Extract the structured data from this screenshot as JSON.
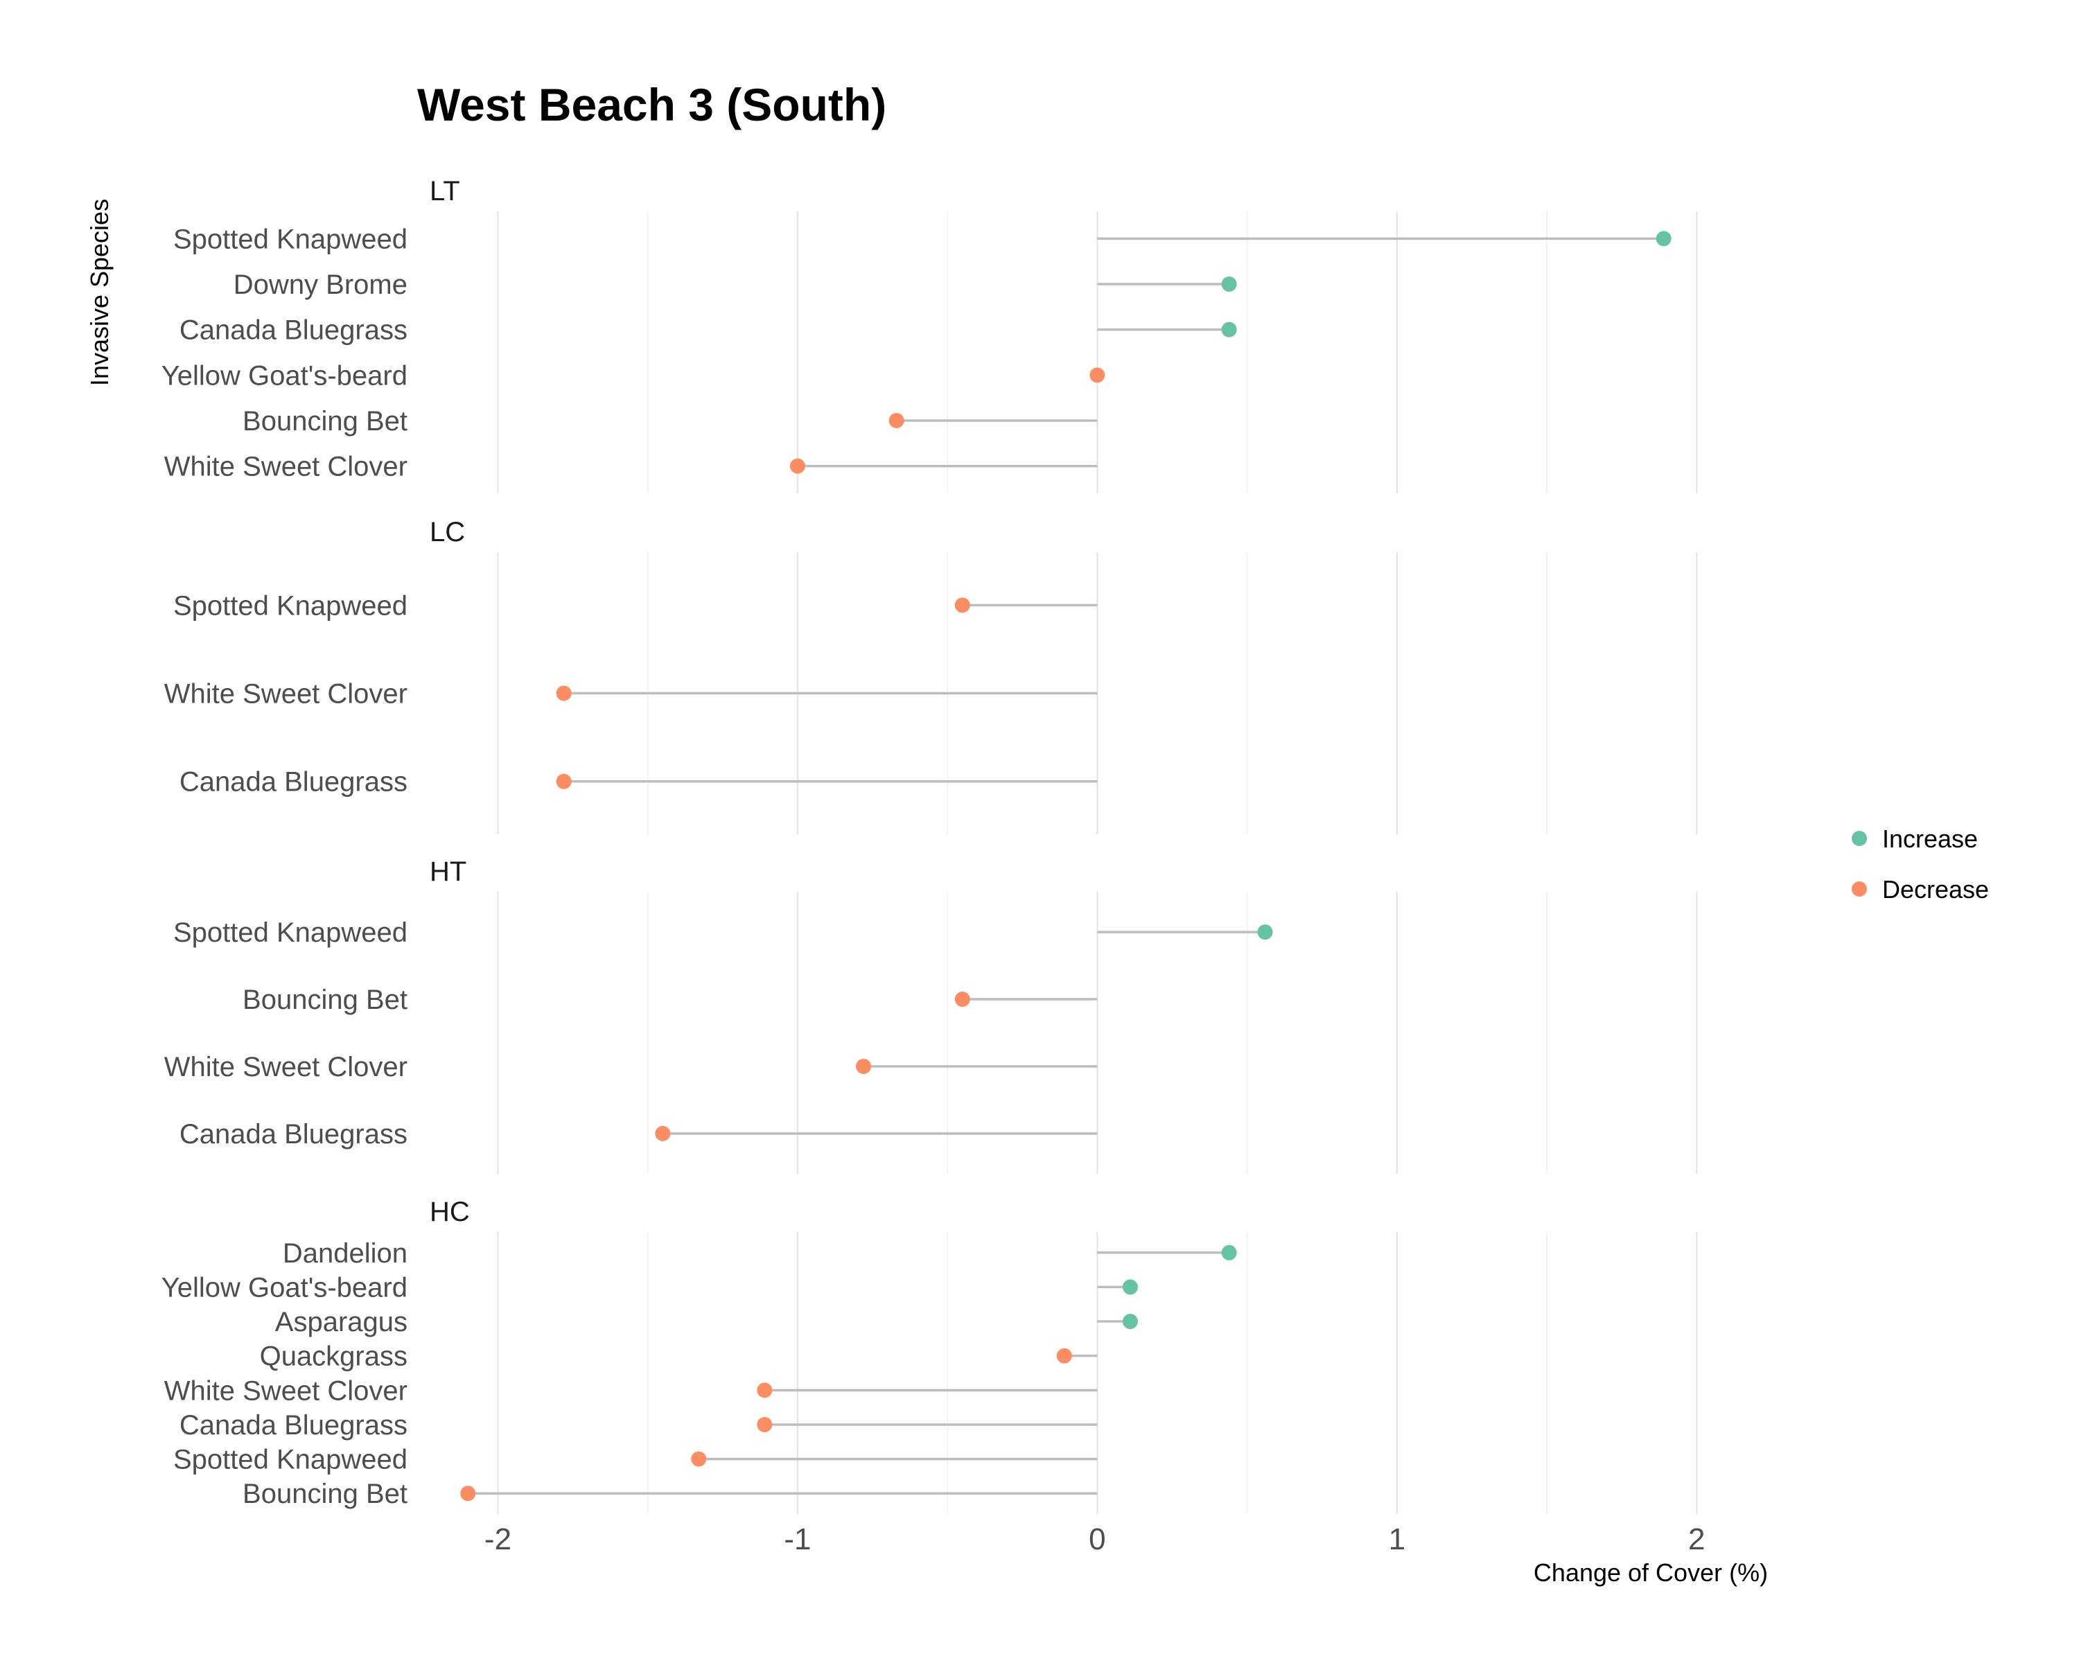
{
  "chart_data": {
    "type": "lollipop",
    "title": "West Beach 3 (South)",
    "xlabel": "Change of Cover (%)",
    "ylabel": "Invasive Species",
    "xlim": [
      -2.2,
      2.3
    ],
    "x_ticks": [
      -2,
      -1,
      0,
      1,
      2
    ],
    "x_tick_labels": [
      "-2",
      "-1",
      "0",
      "1",
      "2"
    ],
    "grid": true,
    "legend": {
      "placement": "right",
      "items": [
        {
          "label": "Increase",
          "color": "#66c2a5"
        },
        {
          "label": "Decrease",
          "color": "#fc8d62"
        }
      ]
    },
    "facets": [
      {
        "name": "LT",
        "points": [
          {
            "species": "Spotted Knapweed",
            "value": 1.89,
            "direction": "Increase"
          },
          {
            "species": "Downy Brome",
            "value": 0.44,
            "direction": "Increase"
          },
          {
            "species": "Canada Bluegrass",
            "value": 0.44,
            "direction": "Increase"
          },
          {
            "species": "Yellow Goat's-beard",
            "value": 0.0,
            "direction": "Decrease"
          },
          {
            "species": "Bouncing Bet",
            "value": -0.67,
            "direction": "Decrease"
          },
          {
            "species": "White Sweet Clover",
            "value": -1.0,
            "direction": "Decrease"
          }
        ]
      },
      {
        "name": "LC",
        "points": [
          {
            "species": "Spotted Knapweed",
            "value": -0.45,
            "direction": "Decrease"
          },
          {
            "species": "White Sweet Clover",
            "value": -1.78,
            "direction": "Decrease"
          },
          {
            "species": "Canada Bluegrass",
            "value": -1.78,
            "direction": "Decrease"
          }
        ]
      },
      {
        "name": "HT",
        "points": [
          {
            "species": "Spotted Knapweed",
            "value": 0.56,
            "direction": "Increase"
          },
          {
            "species": "Bouncing Bet",
            "value": -0.45,
            "direction": "Decrease"
          },
          {
            "species": "White Sweet Clover",
            "value": -0.78,
            "direction": "Decrease"
          },
          {
            "species": "Canada Bluegrass",
            "value": -1.45,
            "direction": "Decrease"
          }
        ]
      },
      {
        "name": "HC",
        "points": [
          {
            "species": "Dandelion",
            "value": 0.44,
            "direction": "Increase"
          },
          {
            "species": "Yellow Goat's-beard",
            "value": 0.11,
            "direction": "Increase"
          },
          {
            "species": "Asparagus",
            "value": 0.11,
            "direction": "Increase"
          },
          {
            "species": "Quackgrass",
            "value": -0.11,
            "direction": "Decrease"
          },
          {
            "species": "White Sweet Clover",
            "value": -1.11,
            "direction": "Decrease"
          },
          {
            "species": "Canada Bluegrass",
            "value": -1.11,
            "direction": "Decrease"
          },
          {
            "species": "Spotted Knapweed",
            "value": -1.33,
            "direction": "Decrease"
          },
          {
            "species": "Bouncing Bet",
            "value": -2.1,
            "direction": "Decrease"
          }
        ]
      }
    ]
  }
}
